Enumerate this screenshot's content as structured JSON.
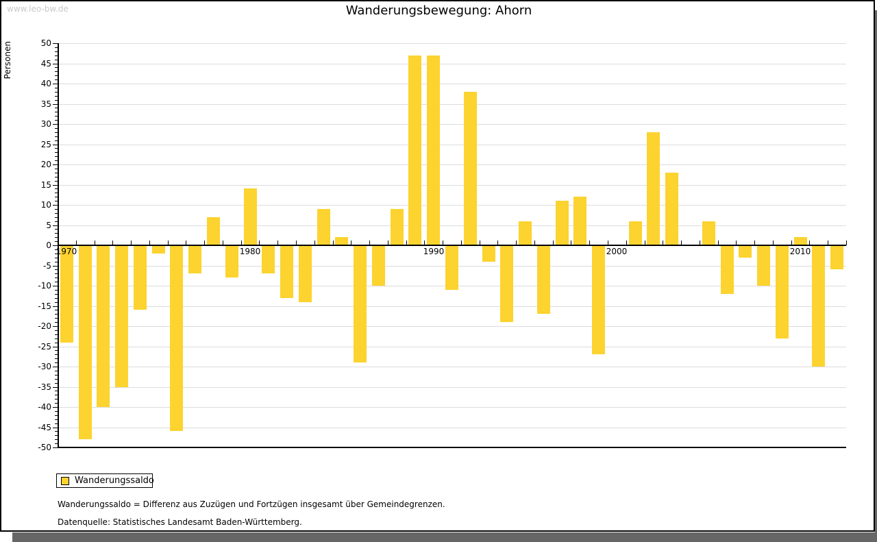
{
  "page": {
    "watermark": "www.leo-bw.de",
    "title": "Wanderungsbewegung: Ahorn"
  },
  "legend": {
    "label": "Wanderungssaldo"
  },
  "footnotes": {
    "definition": "Wanderungssaldo = Differenz aus Zuzügen und Fortzügen insgesamt über Gemeindegrenzen.",
    "source": "Datenquelle: Statistisches Landesamt Baden-Württemberg."
  },
  "colors": {
    "bar": "#FCD32F",
    "grid": "#DCDCDC",
    "axis": "#000000",
    "watermark": "#C9C9C9",
    "shadow": "#666666"
  },
  "chart_data": {
    "type": "bar",
    "title": "Wanderungsbewegung: Ahorn",
    "xlabel": "",
    "ylabel": "Personen",
    "ylim": [
      -50,
      50
    ],
    "ytick_step": 5,
    "grid": true,
    "legend_position": "bottom-left",
    "x_axis_decade_labels": [
      "1970",
      "1980",
      "1990",
      "2000",
      "2010"
    ],
    "categories": [
      1970,
      1971,
      1972,
      1973,
      1974,
      1975,
      1976,
      1977,
      1978,
      1979,
      1980,
      1981,
      1982,
      1983,
      1984,
      1985,
      1986,
      1987,
      1988,
      1989,
      1990,
      1991,
      1992,
      1993,
      1994,
      1995,
      1996,
      1997,
      1998,
      1999,
      2000,
      2001,
      2002,
      2003,
      2004,
      2005,
      2006,
      2007,
      2008,
      2009,
      2010,
      2011,
      2012
    ],
    "series": [
      {
        "name": "Wanderungssaldo",
        "values": [
          -24,
          -48,
          -40,
          -35,
          -16,
          -2,
          -46,
          -7,
          7,
          -8,
          14,
          -7,
          -13,
          -14,
          9,
          2,
          -29,
          -10,
          9,
          47,
          47,
          -11,
          38,
          -4,
          -19,
          6,
          -17,
          11,
          12,
          -27,
          0,
          6,
          28,
          18,
          0,
          6,
          -12,
          -3,
          -10,
          -23,
          2,
          -30,
          -6
        ]
      }
    ]
  }
}
